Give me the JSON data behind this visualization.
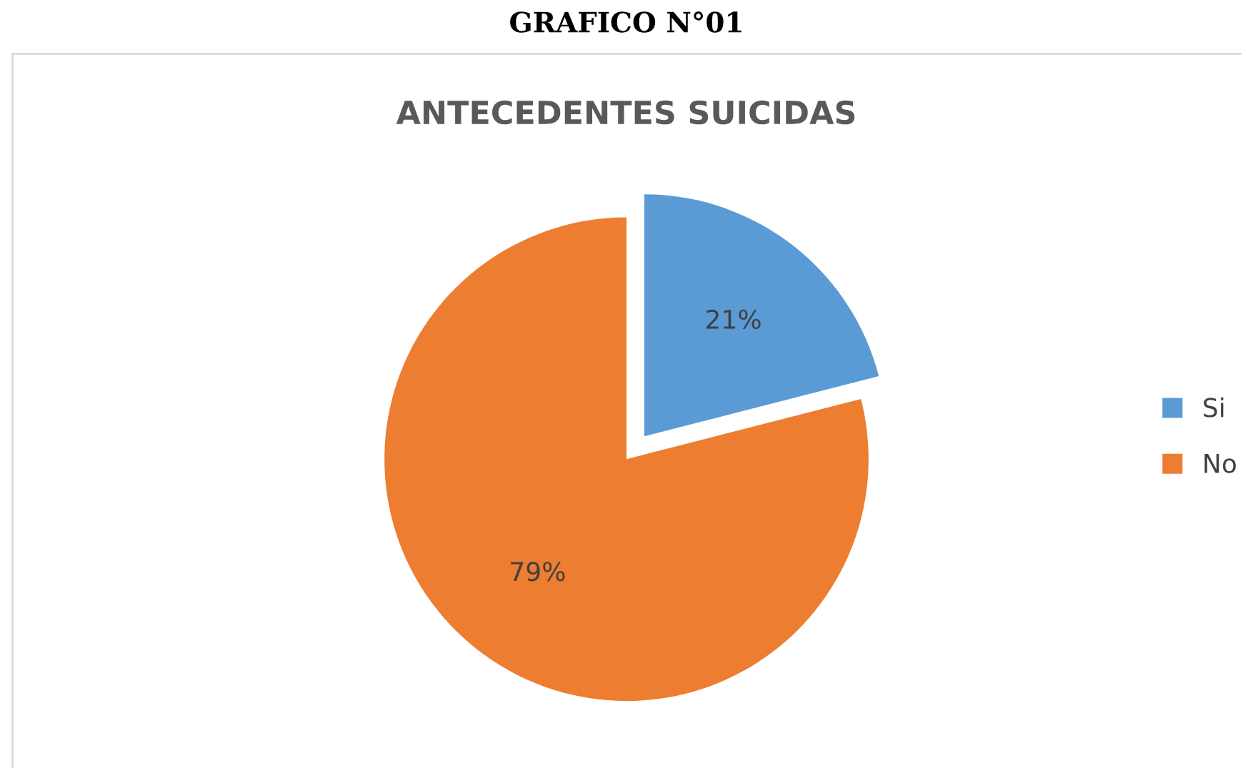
{
  "chart_data": {
    "type": "pie",
    "title": "ANTECEDENTES SUICIDAS",
    "annotations": [
      "GRAFICO N°01"
    ],
    "categories": [
      "Si",
      "No"
    ],
    "values": [
      21,
      79
    ],
    "colors": [
      "#5b9bd5",
      "#ed7d31"
    ],
    "value_labels": [
      "21%",
      "79%"
    ],
    "legend": "right"
  }
}
